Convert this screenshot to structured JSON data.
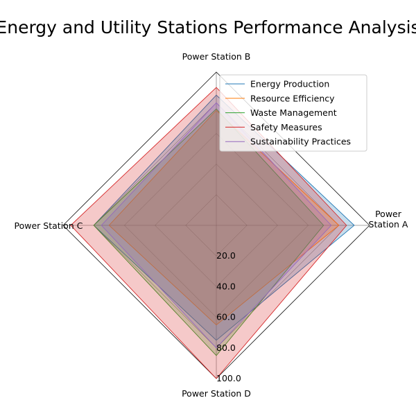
{
  "chart_data": {
    "type": "radar",
    "title": "Energy and Utility Stations Performance Analysis",
    "axes": [
      "Power\nStation A",
      "Power Station B",
      "Power Station C",
      "Power Station D"
    ],
    "rlim": [
      0,
      100
    ],
    "rticks": [
      20,
      40,
      60,
      80,
      100
    ],
    "rtick_labels": [
      "20.0",
      "40.0",
      "60.0",
      "80.0",
      "100.0"
    ],
    "grid": true,
    "legend_position": "top-right",
    "series": [
      {
        "name": "Energy Production",
        "values": [
          90,
          85,
          80,
          75
        ],
        "color": "#1f77b4"
      },
      {
        "name": "Resource Efficiency",
        "values": [
          80,
          75,
          70,
          65
        ],
        "color": "#ff7f0e"
      },
      {
        "name": "Waste Management",
        "values": [
          70,
          76,
          80,
          85
        ],
        "color": "#2ca02c"
      },
      {
        "name": "Safety Measures",
        "values": [
          85,
          90,
          95,
          100
        ],
        "color": "#d62728"
      },
      {
        "name": "Sustainability Practices",
        "values": [
          75,
          80,
          75,
          80
        ],
        "color": "#9467bd"
      }
    ]
  }
}
